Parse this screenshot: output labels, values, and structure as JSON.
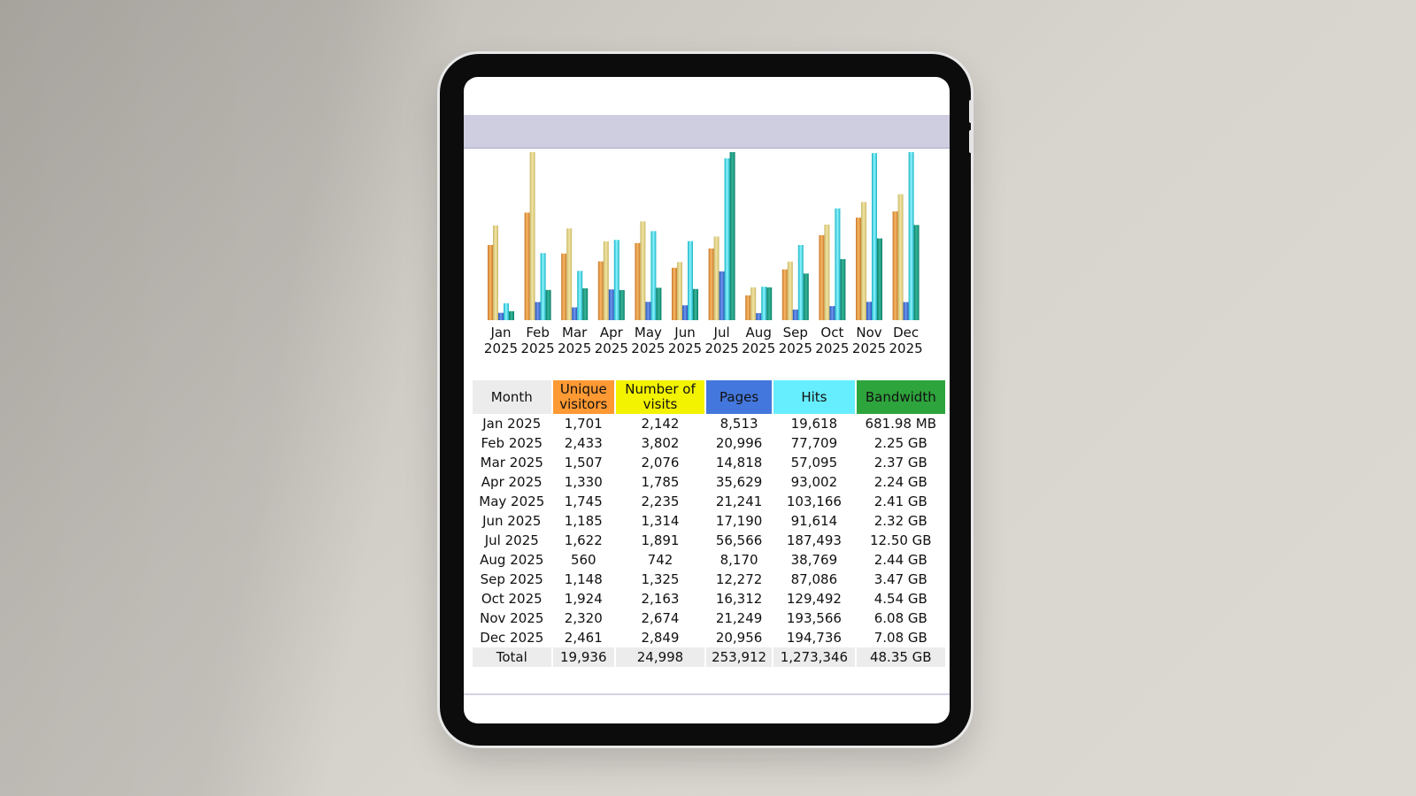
{
  "chart_data": {
    "type": "bar",
    "categories": [
      "Jan 2025",
      "Feb 2025",
      "Mar 2025",
      "Apr 2025",
      "May 2025",
      "Jun 2025",
      "Jul 2025",
      "Aug 2025",
      "Sep 2025",
      "Oct 2025",
      "Nov 2025",
      "Dec 2025"
    ],
    "category_labels": [
      {
        "month": "Jan",
        "year": "2025"
      },
      {
        "month": "Feb",
        "year": "2025"
      },
      {
        "month": "Mar",
        "year": "2025"
      },
      {
        "month": "Apr",
        "year": "2025"
      },
      {
        "month": "May",
        "year": "2025"
      },
      {
        "month": "Jun",
        "year": "2025"
      },
      {
        "month": "Jul",
        "year": "2025"
      },
      {
        "month": "Aug",
        "year": "2025"
      },
      {
        "month": "Sep",
        "year": "2025"
      },
      {
        "month": "Oct",
        "year": "2025"
      },
      {
        "month": "Nov",
        "year": "2025"
      },
      {
        "month": "Dec",
        "year": "2025"
      }
    ],
    "series": [
      {
        "name": "Unique visitors",
        "group": "visits",
        "color": "#ff9933",
        "values": [
          1701,
          2433,
          1507,
          1330,
          1745,
          1185,
          1622,
          560,
          1148,
          1924,
          2320,
          2461
        ]
      },
      {
        "name": "Number of visits",
        "group": "visits",
        "color": "#e8d87a",
        "values": [
          2142,
          3802,
          2076,
          1785,
          2235,
          1314,
          1891,
          742,
          1325,
          2163,
          2674,
          2849
        ]
      },
      {
        "name": "Pages",
        "group": "hits",
        "color": "#4477dd",
        "values": [
          8513,
          20996,
          14818,
          35629,
          21241,
          17190,
          56566,
          8170,
          12272,
          16312,
          21249,
          20956
        ]
      },
      {
        "name": "Hits",
        "group": "hits",
        "color": "#66eeff",
        "values": [
          19618,
          77709,
          57095,
          93002,
          103166,
          91614,
          187493,
          38769,
          87086,
          129492,
          193566,
          194736
        ]
      },
      {
        "name": "Bandwidth",
        "group": "bandwidth",
        "color": "#2ea43c",
        "values_gb": [
          0.666,
          2.25,
          2.37,
          2.24,
          2.41,
          2.32,
          12.5,
          2.44,
          3.47,
          4.54,
          6.08,
          7.08
        ]
      }
    ],
    "legend": "none",
    "grid": false
  },
  "table": {
    "headers": {
      "month": "Month",
      "unique": [
        "Unique",
        "visitors"
      ],
      "visits": [
        "Number of",
        "visits"
      ],
      "pages": "Pages",
      "hits": "Hits",
      "bandwidth": "Bandwidth"
    },
    "rows": [
      {
        "month": "Jan 2025",
        "unique": "1,701",
        "visits": "2,142",
        "pages": "8,513",
        "hits": "19,618",
        "bandwidth": "681.98 MB"
      },
      {
        "month": "Feb 2025",
        "unique": "2,433",
        "visits": "3,802",
        "pages": "20,996",
        "hits": "77,709",
        "bandwidth": "2.25 GB"
      },
      {
        "month": "Mar 2025",
        "unique": "1,507",
        "visits": "2,076",
        "pages": "14,818",
        "hits": "57,095",
        "bandwidth": "2.37 GB"
      },
      {
        "month": "Apr 2025",
        "unique": "1,330",
        "visits": "1,785",
        "pages": "35,629",
        "hits": "93,002",
        "bandwidth": "2.24 GB"
      },
      {
        "month": "May 2025",
        "unique": "1,745",
        "visits": "2,235",
        "pages": "21,241",
        "hits": "103,166",
        "bandwidth": "2.41 GB"
      },
      {
        "month": "Jun 2025",
        "unique": "1,185",
        "visits": "1,314",
        "pages": "17,190",
        "hits": "91,614",
        "bandwidth": "2.32 GB"
      },
      {
        "month": "Jul 2025",
        "unique": "1,622",
        "visits": "1,891",
        "pages": "56,566",
        "hits": "187,493",
        "bandwidth": "12.50 GB"
      },
      {
        "month": "Aug 2025",
        "unique": "560",
        "visits": "742",
        "pages": "8,170",
        "hits": "38,769",
        "bandwidth": "2.44 GB"
      },
      {
        "month": "Sep 2025",
        "unique": "1,148",
        "visits": "1,325",
        "pages": "12,272",
        "hits": "87,086",
        "bandwidth": "3.47 GB"
      },
      {
        "month": "Oct 2025",
        "unique": "1,924",
        "visits": "2,163",
        "pages": "16,312",
        "hits": "129,492",
        "bandwidth": "4.54 GB"
      },
      {
        "month": "Nov 2025",
        "unique": "2,320",
        "visits": "2,674",
        "pages": "21,249",
        "hits": "193,566",
        "bandwidth": "6.08 GB"
      },
      {
        "month": "Dec 2025",
        "unique": "2,461",
        "visits": "2,849",
        "pages": "20,956",
        "hits": "194,736",
        "bandwidth": "7.08 GB"
      }
    ],
    "total": {
      "month": "Total",
      "unique": "19,936",
      "visits": "24,998",
      "pages": "253,912",
      "hits": "1,273,346",
      "bandwidth": "48.35 GB"
    }
  }
}
